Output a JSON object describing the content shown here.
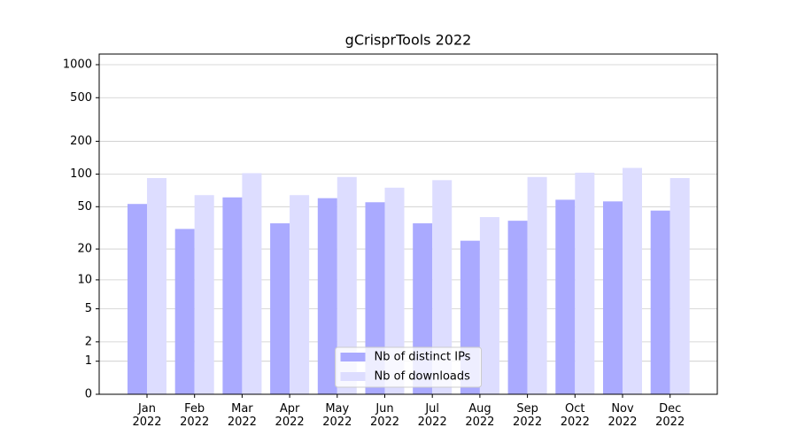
{
  "chart_data": {
    "type": "bar",
    "title": "gCrisprTools 2022",
    "categories": [
      "Jan\n2022",
      "Feb\n2022",
      "Mar\n2022",
      "Apr\n2022",
      "May\n2022",
      "Jun\n2022",
      "Jul\n2022",
      "Aug\n2022",
      "Sep\n2022",
      "Oct\n2022",
      "Nov\n2022",
      "Dec\n2022"
    ],
    "series": [
      {
        "name": "Nb of distinct IPs",
        "color": "#aaaaff",
        "values": [
          53,
          31,
          61,
          35,
          60,
          55,
          35,
          24,
          37,
          58,
          56,
          46
        ]
      },
      {
        "name": "Nb of downloads",
        "color": "#ddddff",
        "values": [
          92,
          64,
          102,
          64,
          94,
          75,
          88,
          40,
          94,
          103,
          114,
          92
        ]
      }
    ],
    "yscale": "log1p",
    "ylim": [
      0,
      1250
    ],
    "yticks": [
      0,
      1,
      2,
      5,
      10,
      20,
      50,
      100,
      200,
      500,
      1000
    ],
    "grid": true,
    "legend": "lower center"
  }
}
